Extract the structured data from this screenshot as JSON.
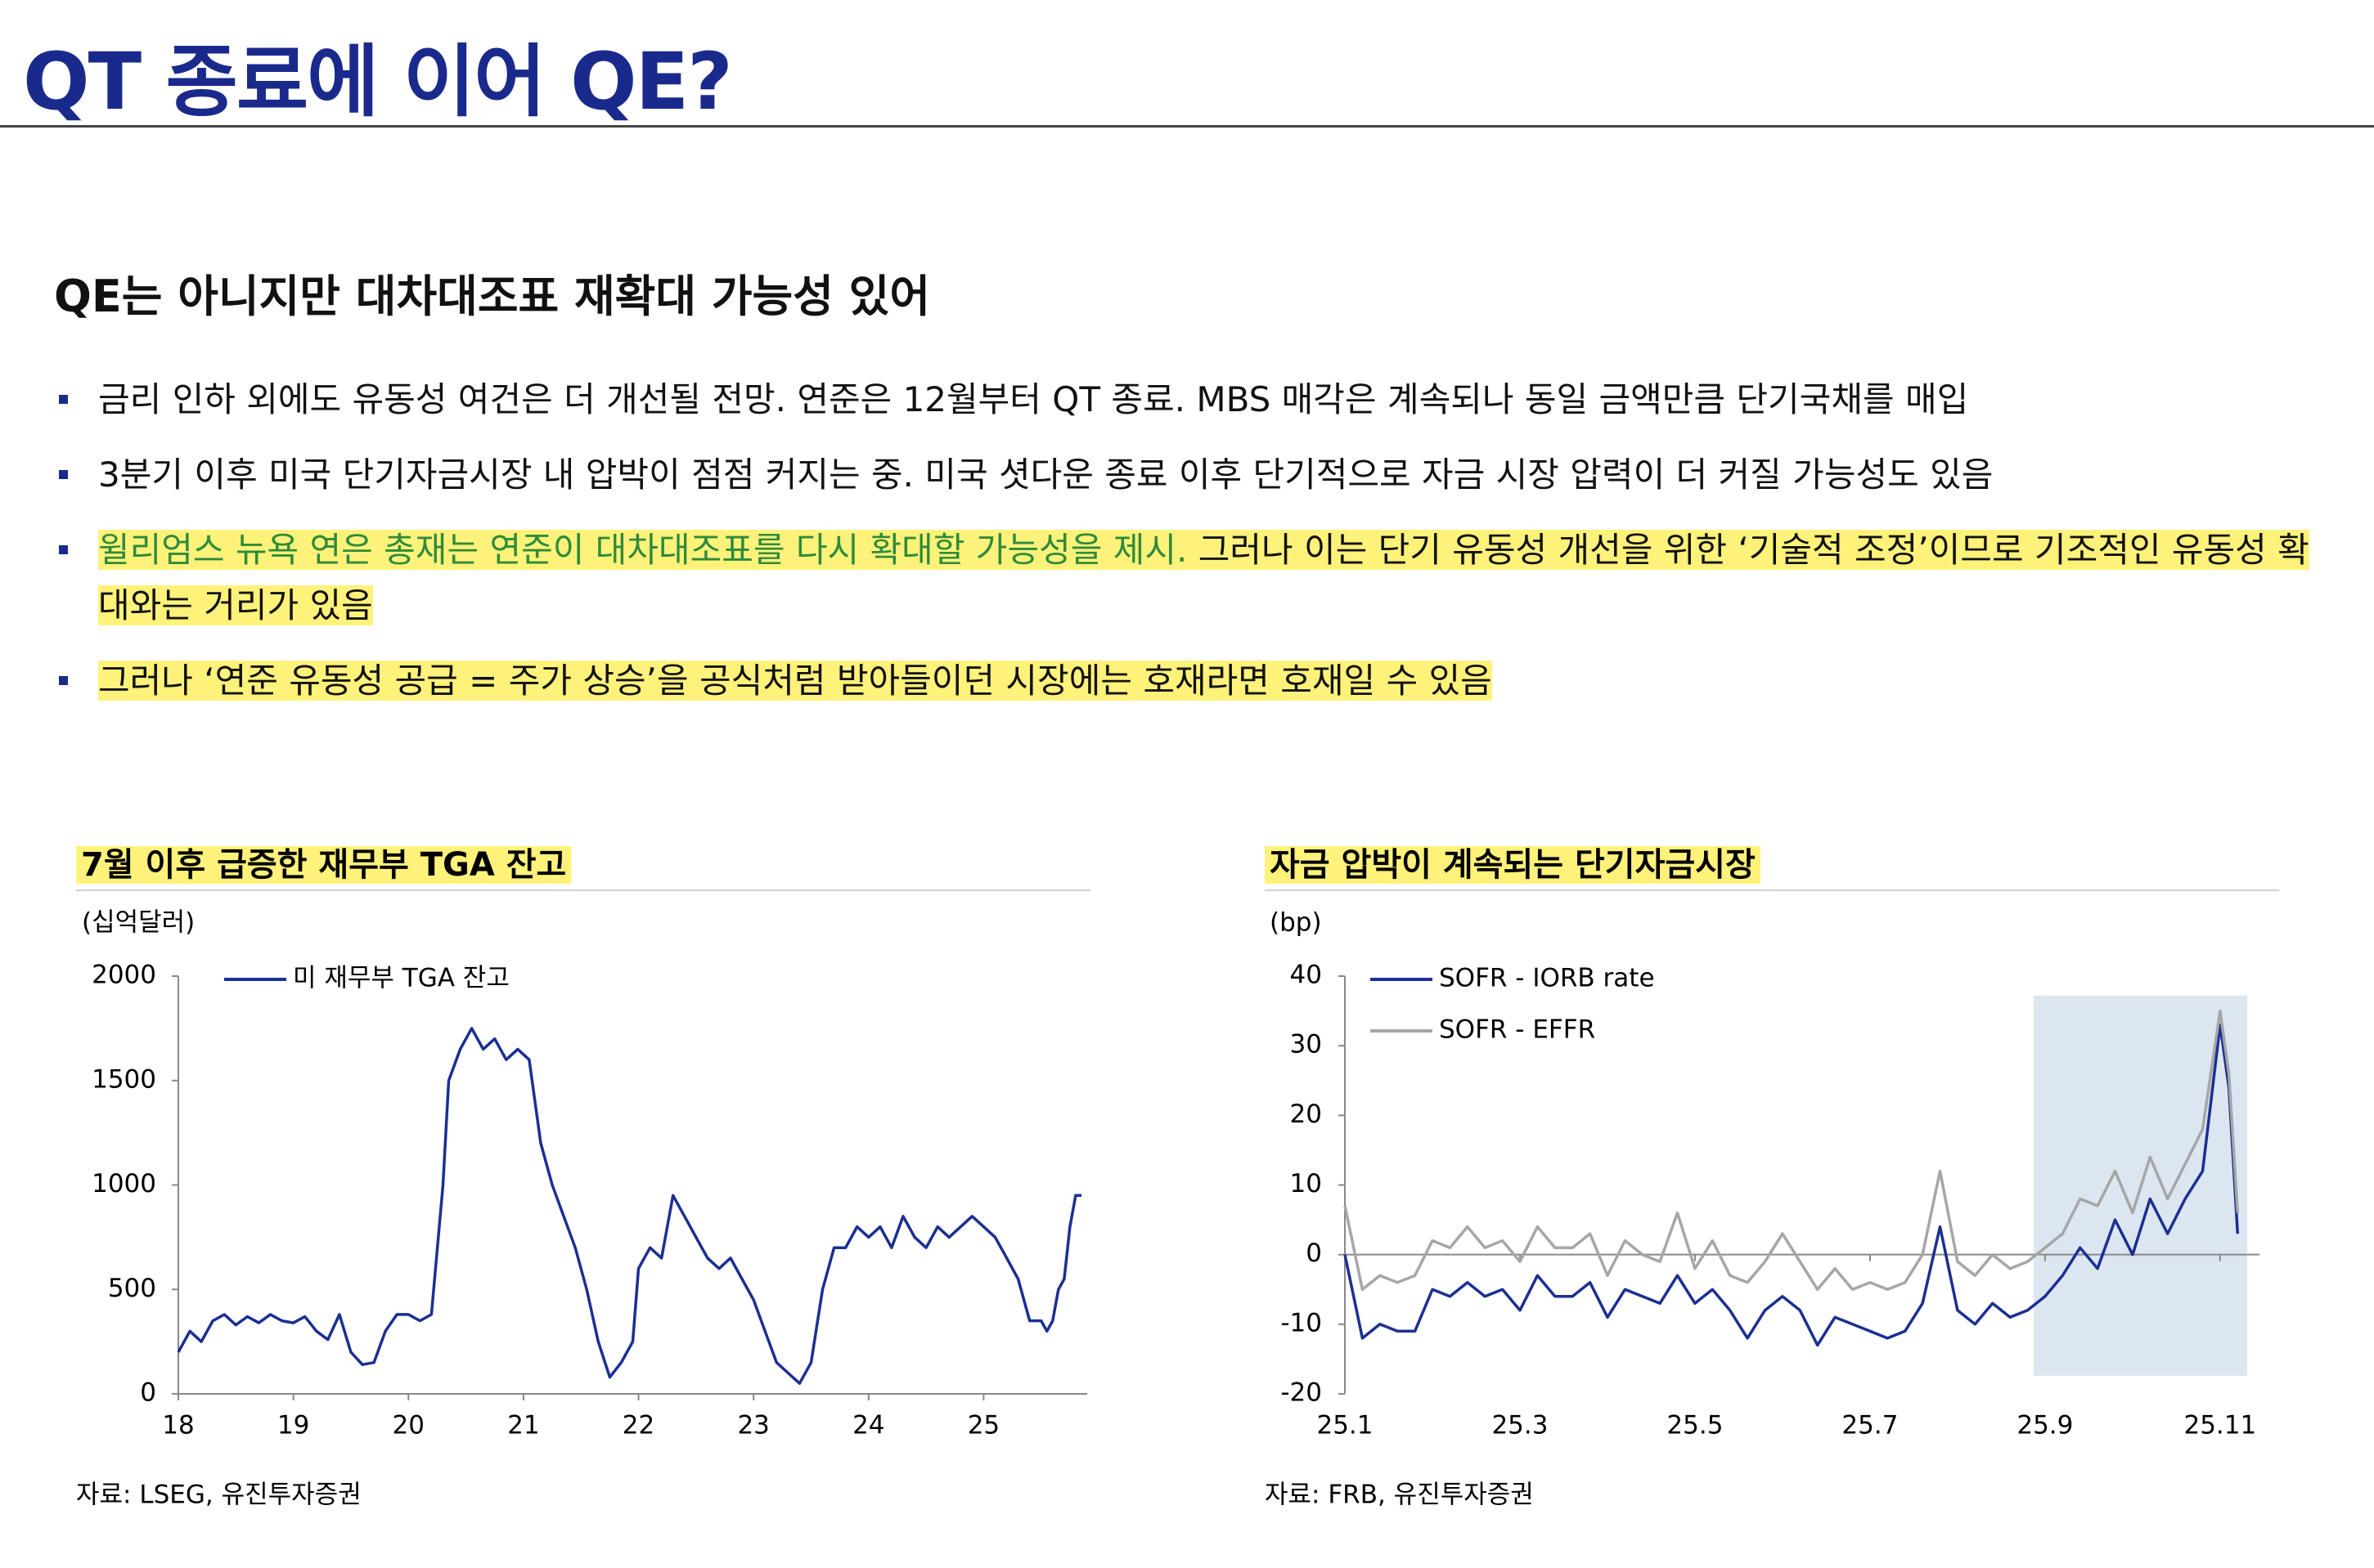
{
  "header": {
    "title": "QT 종료에 이어 QE?"
  },
  "subtitle": "QE는 아니지만 대차대조표 재확대 가능성 있어",
  "bullets": [
    {
      "segments": [
        {
          "text": "금리 인하 외에도 유동성 여건은 더 개선될 전망. 연준은 12월부터 QT 종료. MBS 매각은 계속되나 동일 금액만큼 단기국채를 매입"
        }
      ]
    },
    {
      "segments": [
        {
          "text": "3분기 이후 미국 단기자금시장 내 압박이 점점 커지는 중. 미국 셧다운 종료 이후 단기적으로 자금 시장 압력이 더 커질 가능성도 있음"
        }
      ]
    },
    {
      "segments": [
        {
          "text": "윌리엄스 뉴욕 연은 총재는 연준이 대차대조표를 다시 확대할 가능성을 제시.",
          "highlight": "#fff27a",
          "color": "#2e8b3a"
        },
        {
          "text": " 그러나 이는 단기 유동성 개선을 위한 ‘기술적 조정’이므로 기조적인 유동성 확대와는 거리가 있음",
          "highlight": "#fff27a"
        }
      ]
    },
    {
      "segments": [
        {
          "text": "그러나 ‘연준 유동성 공급 =  주가 상승’을 공식처럼 받아들이던 시장에는 호재라면 호재일 수 있음",
          "highlight": "#fff27a"
        }
      ]
    }
  ],
  "chart_data": [
    {
      "type": "line",
      "title": "7월 이후 급증한 재무부 TGA 잔고",
      "title_highlight": "#fff27a",
      "unit_label": "(십억달러)",
      "source": "자료: LSEG, 유진투자증권",
      "x": [
        18.0,
        18.1,
        18.2,
        18.3,
        18.4,
        18.5,
        18.6,
        18.7,
        18.8,
        18.9,
        19.0,
        19.1,
        19.2,
        19.3,
        19.4,
        19.5,
        19.6,
        19.7,
        19.8,
        19.9,
        20.0,
        20.1,
        20.2,
        20.3,
        20.35,
        20.45,
        20.55,
        20.65,
        20.75,
        20.85,
        20.95,
        21.05,
        21.15,
        21.25,
        21.35,
        21.45,
        21.55,
        21.65,
        21.75,
        21.85,
        21.95,
        22.0,
        22.1,
        22.2,
        22.3,
        22.4,
        22.5,
        22.6,
        22.7,
        22.8,
        22.9,
        23.0,
        23.1,
        23.2,
        23.3,
        23.4,
        23.5,
        23.6,
        23.7,
        23.8,
        23.9,
        24.0,
        24.1,
        24.2,
        24.3,
        24.4,
        24.5,
        24.6,
        24.7,
        24.8,
        24.9,
        25.0,
        25.1,
        25.2,
        25.3,
        25.4,
        25.5,
        25.55,
        25.6,
        25.65,
        25.7,
        25.75,
        25.8,
        25.85
      ],
      "series": [
        {
          "name": "미 재무부 TGA 잔고",
          "color": "#1b2f93",
          "values": [
            200,
            300,
            250,
            350,
            380,
            330,
            370,
            340,
            380,
            350,
            340,
            370,
            300,
            260,
            380,
            200,
            140,
            150,
            300,
            380,
            380,
            350,
            380,
            1000,
            1500,
            1650,
            1750,
            1650,
            1700,
            1600,
            1650,
            1600,
            1200,
            1000,
            850,
            700,
            500,
            250,
            80,
            150,
            250,
            600,
            700,
            650,
            950,
            850,
            750,
            650,
            600,
            650,
            550,
            450,
            300,
            150,
            100,
            50,
            150,
            500,
            700,
            700,
            800,
            750,
            800,
            700,
            850,
            750,
            700,
            800,
            750,
            800,
            850,
            800,
            750,
            650,
            550,
            350,
            350,
            300,
            350,
            500,
            550,
            800,
            950,
            950
          ]
        }
      ],
      "xlim": [
        18,
        25.9
      ],
      "xticks": [
        18,
        19,
        20,
        21,
        22,
        23,
        24,
        25
      ],
      "ylim": [
        0,
        2000
      ],
      "yticks": [
        0,
        500,
        1000,
        1500,
        2000
      ]
    },
    {
      "type": "line",
      "title": "자금 압박이 계속되는 단기자금시장",
      "title_highlight": "#fff27a",
      "unit_label": "(bp)",
      "source": "자료: FRB, 유진투자증권",
      "x": [
        1.0,
        1.2,
        1.4,
        1.6,
        1.8,
        2.0,
        2.2,
        2.4,
        2.6,
        2.8,
        3.0,
        3.2,
        3.4,
        3.6,
        3.8,
        4.0,
        4.2,
        4.4,
        4.6,
        4.8,
        5.0,
        5.2,
        5.4,
        5.6,
        5.8,
        6.0,
        6.2,
        6.4,
        6.6,
        6.8,
        7.0,
        7.2,
        7.4,
        7.6,
        7.8,
        8.0,
        8.2,
        8.4,
        8.6,
        8.8,
        9.0,
        9.2,
        9.4,
        9.6,
        9.8,
        10.0,
        10.2,
        10.4,
        10.6,
        10.8,
        11.0,
        11.1,
        11.2
      ],
      "series": [
        {
          "name": "SOFR - IORB rate",
          "color": "#1b2f93",
          "values": [
            0,
            -12,
            -10,
            -11,
            -11,
            -5,
            -6,
            -4,
            -6,
            -5,
            -8,
            -3,
            -6,
            -6,
            -4,
            -9,
            -5,
            -6,
            -7,
            -3,
            -7,
            -5,
            -8,
            -12,
            -8,
            -6,
            -8,
            -13,
            -9,
            -10,
            -11,
            -12,
            -11,
            -7,
            4,
            -8,
            -10,
            -7,
            -9,
            -8,
            -6,
            -3,
            1,
            -2,
            5,
            0,
            8,
            3,
            8,
            12,
            33,
            24,
            3
          ]
        },
        {
          "name": "SOFR - EFFR",
          "color": "#a6a6a6",
          "values": [
            7,
            -5,
            -3,
            -4,
            -3,
            2,
            1,
            4,
            1,
            2,
            -1,
            4,
            1,
            1,
            3,
            -3,
            2,
            0,
            -1,
            6,
            -2,
            2,
            -3,
            -4,
            -1,
            3,
            -1,
            -5,
            -2,
            -5,
            -4,
            -5,
            -4,
            0,
            12,
            -1,
            -3,
            0,
            -2,
            -1,
            1,
            3,
            8,
            7,
            12,
            6,
            14,
            8,
            13,
            18,
            35,
            26,
            6
          ]
        }
      ],
      "shade": {
        "xlim": [
          8.87,
          11.31
        ],
        "ylim": [
          -17.4,
          37.2
        ],
        "color": "#dce6f1"
      },
      "xlim": [
        1,
        11.45
      ],
      "xticks": [
        {
          "value": 1,
          "label": "25.1"
        },
        {
          "value": 3,
          "label": "25.3"
        },
        {
          "value": 5,
          "label": "25.5"
        },
        {
          "value": 7,
          "label": "25.7"
        },
        {
          "value": 9,
          "label": "25.9"
        },
        {
          "value": 11,
          "label": "25.11"
        }
      ],
      "ylim": [
        -20,
        40
      ],
      "yticks": [
        -20,
        -10,
        0,
        10,
        20,
        30,
        40
      ]
    }
  ]
}
